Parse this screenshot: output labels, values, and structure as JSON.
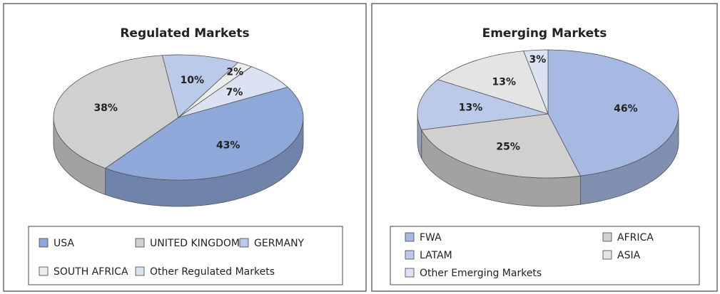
{
  "chart_data": [
    {
      "type": "pie",
      "title": "Regulated Markets",
      "categories": [
        "USA",
        "UNITED KINGDOM",
        "GERMANY",
        "SOUTH AFRICA",
        "Other Regulated Markets"
      ],
      "values": [
        43,
        38,
        10,
        2,
        7
      ],
      "value_labels": [
        "43%",
        "38%",
        "10%",
        "2%",
        "7%"
      ],
      "colors": [
        "#8fa8da",
        "#d0d0d0",
        "#bccae9",
        "#ececec",
        "#dbe2f2"
      ]
    },
    {
      "type": "pie",
      "title": "Emerging Markets",
      "categories": [
        "FWA",
        "AFRICA",
        "LATAM",
        "ASIA",
        "Other Emerging Markets"
      ],
      "values": [
        46,
        25,
        13,
        13,
        3
      ],
      "value_labels": [
        "46%",
        "25%",
        "13%",
        "13%",
        "3%"
      ],
      "colors": [
        "#a6b9e2",
        "#d0d0d0",
        "#bccae9",
        "#e4e4e4",
        "#dbe2f2"
      ]
    }
  ]
}
